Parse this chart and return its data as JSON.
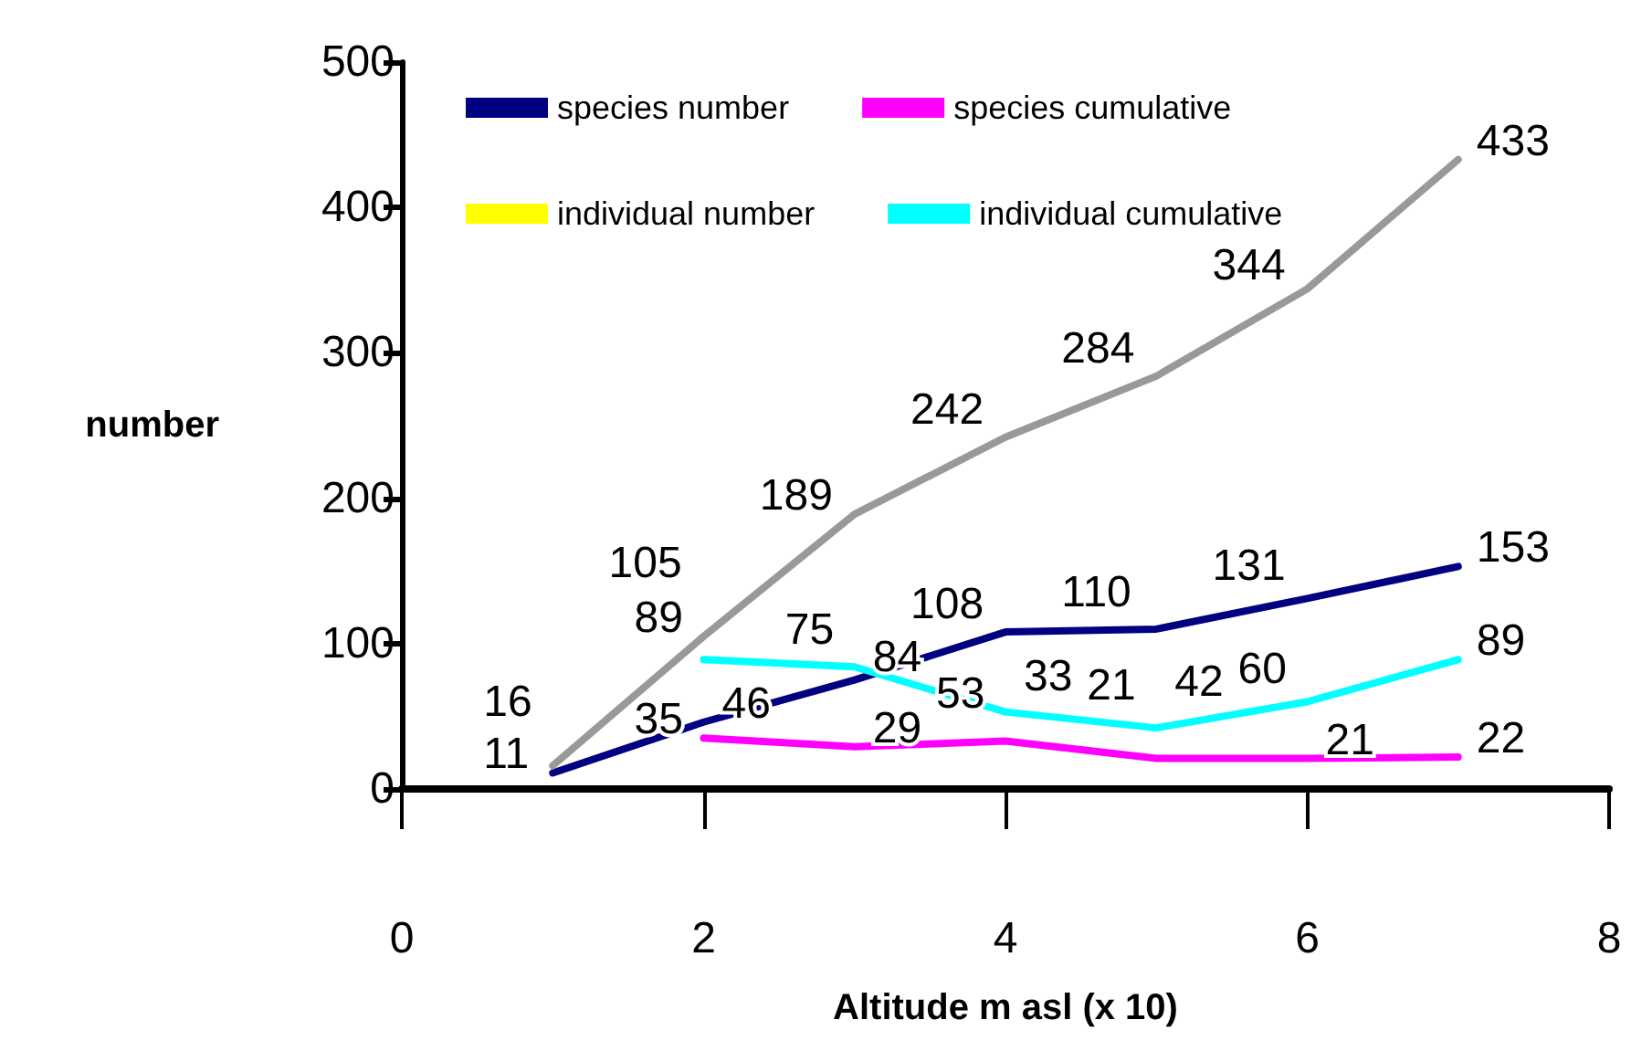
{
  "chart_data": {
    "type": "line",
    "xlabel": "Altitude m asl (x 10)",
    "ylabel": "number",
    "xlim": [
      0,
      8
    ],
    "xticks": [
      0,
      2,
      4,
      6,
      8
    ],
    "ylim": [
      0,
      500
    ],
    "yticks": [
      0,
      100,
      200,
      300,
      400,
      500
    ],
    "grid": false,
    "legend": "top left",
    "marker": "none",
    "line_style": "solid",
    "data_labels": true,
    "x": [
      1,
      2,
      3,
      4,
      5,
      6,
      7
    ],
    "series": [
      {
        "name": "species number",
        "color": "#000080",
        "values": [
          11,
          46,
          75,
          108,
          110,
          131,
          153
        ]
      },
      {
        "name": "species cumulative",
        "color": "#ff00ff",
        "values": [
          null,
          35,
          29,
          33,
          21,
          21,
          22
        ]
      },
      {
        "name": "individual number",
        "color": "#ffff00",
        "values": [
          null,
          null,
          null,
          null,
          null,
          null,
          null
        ]
      },
      {
        "name": "individual cumulative",
        "color": "#00ffff",
        "values": [
          null,
          89,
          84,
          53,
          42,
          60,
          89
        ]
      },
      {
        "color": "#999999",
        "values": [
          16,
          105,
          189,
          242,
          284,
          344,
          433
        ]
      }
    ]
  }
}
